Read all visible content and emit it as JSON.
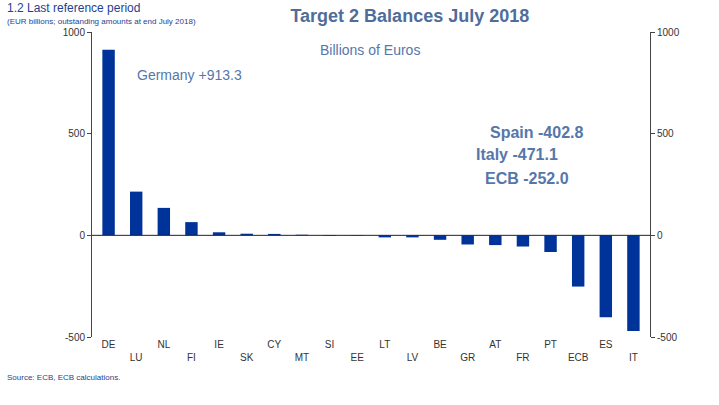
{
  "chart_data": {
    "type": "bar",
    "title": "Target 2 Balances July 2018",
    "subtitle": [
      "1.2 Last reference period",
      "(EUR billions; outstanding amounts at end July 2018)"
    ],
    "annotations": [
      "Billions of Euros",
      "Germany +913.3",
      "Spain -402.8",
      "Italy -471.1",
      "ECB -252.0"
    ],
    "source": "Source: ECB, ECB calculations.",
    "categories": [
      "DE",
      "LU",
      "NL",
      "FI",
      "IE",
      "SK",
      "CY",
      "MT",
      "SI",
      "EE",
      "LT",
      "LV",
      "BE",
      "GR",
      "AT",
      "FR",
      "PT",
      "ECB",
      "ES",
      "IT"
    ],
    "values": [
      913.3,
      215,
      135,
      65,
      15,
      8,
      7,
      3,
      -3,
      -2,
      -10,
      -10,
      -22,
      -45,
      -48,
      -55,
      -82,
      -252.0,
      -402.8,
      -471.1
    ],
    "color": "#00339a",
    "ylim": [
      -500,
      1000
    ],
    "yticks": [
      -500,
      0,
      500,
      1000
    ],
    "grid": false
  }
}
